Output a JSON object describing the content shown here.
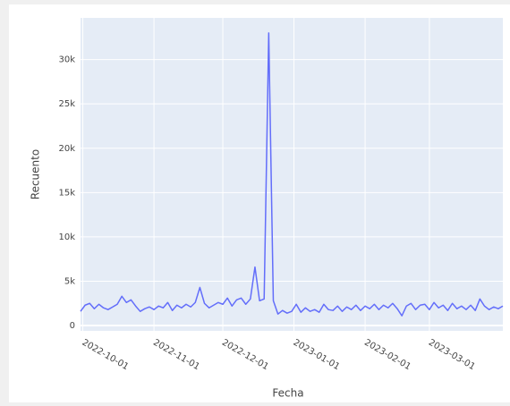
{
  "chart_data": {
    "type": "line",
    "x_label": "Fecha",
    "y_label": "Recuento",
    "x": [
      "2022-09-30",
      "2022-10-02",
      "2022-10-04",
      "2022-10-06",
      "2022-10-08",
      "2022-10-10",
      "2022-10-12",
      "2022-10-14",
      "2022-10-16",
      "2022-10-18",
      "2022-10-20",
      "2022-10-22",
      "2022-10-24",
      "2022-10-26",
      "2022-10-28",
      "2022-10-30",
      "2022-11-01",
      "2022-11-03",
      "2022-11-05",
      "2022-11-07",
      "2022-11-09",
      "2022-11-11",
      "2022-11-13",
      "2022-11-15",
      "2022-11-17",
      "2022-11-19",
      "2022-11-21",
      "2022-11-23",
      "2022-11-25",
      "2022-11-27",
      "2022-11-29",
      "2022-12-01",
      "2022-12-03",
      "2022-12-05",
      "2022-12-07",
      "2022-12-09",
      "2022-12-11",
      "2022-12-13",
      "2022-12-15",
      "2022-12-17",
      "2022-12-19",
      "2022-12-21",
      "2022-12-23",
      "2022-12-25",
      "2022-12-27",
      "2022-12-29",
      "2022-12-31",
      "2023-01-02",
      "2023-01-04",
      "2023-01-06",
      "2023-01-08",
      "2023-01-10",
      "2023-01-12",
      "2023-01-14",
      "2023-01-16",
      "2023-01-18",
      "2023-01-20",
      "2023-01-22",
      "2023-01-24",
      "2023-01-26",
      "2023-01-28",
      "2023-01-30",
      "2023-02-01",
      "2023-02-03",
      "2023-02-05",
      "2023-02-07",
      "2023-02-09",
      "2023-02-11",
      "2023-02-13",
      "2023-02-15",
      "2023-02-17",
      "2023-02-19",
      "2023-02-21",
      "2023-02-23",
      "2023-02-25",
      "2023-02-27",
      "2023-03-01",
      "2023-03-03",
      "2023-03-05",
      "2023-03-07",
      "2023-03-09",
      "2023-03-11",
      "2023-03-13",
      "2023-03-15",
      "2023-03-17",
      "2023-03-19",
      "2023-03-21",
      "2023-03-23",
      "2023-03-25",
      "2023-03-27",
      "2023-03-29",
      "2023-03-31",
      "2023-04-02"
    ],
    "values": [
      1600,
      2300,
      2500,
      1900,
      2400,
      2000,
      1800,
      2100,
      2400,
      3300,
      2600,
      2900,
      2200,
      1600,
      1900,
      2100,
      1800,
      2200,
      2000,
      2600,
      1700,
      2300,
      2000,
      2400,
      2100,
      2600,
      4300,
      2500,
      2000,
      2300,
      2600,
      2400,
      3100,
      2200,
      2900,
      3100,
      2400,
      3000,
      6600,
      2800,
      3000,
      33000,
      2800,
      1300,
      1700,
      1400,
      1600,
      2400,
      1500,
      2000,
      1600,
      1800,
      1500,
      2400,
      1800,
      1700,
      2200,
      1600,
      2100,
      1800,
      2300,
      1700,
      2200,
      1900,
      2400,
      1800,
      2300,
      2000,
      2500,
      1900,
      1100,
      2200,
      2500,
      1800,
      2300,
      2400,
      1800,
      2600,
      2000,
      2300,
      1700,
      2500,
      1900,
      2200,
      1800,
      2300,
      1700,
      3000,
      2200,
      1800,
      2100,
      1900,
      2200
    ],
    "color": "#636efa",
    "xlim": [
      "2022-09-30",
      "2023-04-02"
    ],
    "xticks": [
      "2022-10-01",
      "2022-11-01",
      "2022-12-01",
      "2023-01-01",
      "2023-02-01",
      "2023-03-01"
    ],
    "ylim": [
      -600,
      34700
    ],
    "yticks": [
      0,
      {
        "value": 5000,
        "label": "5k"
      },
      {
        "value": 10000,
        "label": "10k"
      },
      {
        "value": 15000,
        "label": "15k"
      },
      {
        "value": 20000,
        "label": "20k"
      },
      {
        "value": 25000,
        "label": "25k"
      },
      {
        "value": 30000,
        "label": "30k"
      }
    ],
    "grid": true
  }
}
